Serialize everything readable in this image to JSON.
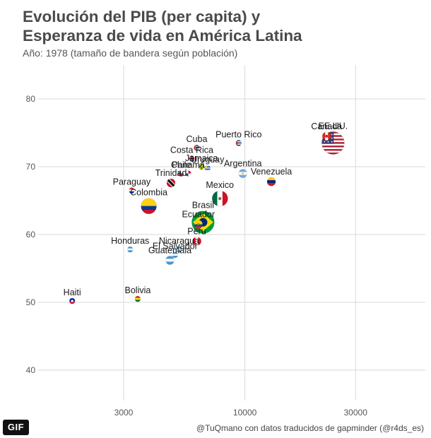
{
  "title_lines": [
    "Evolución del PIB (per capita) y",
    "Esperanza de vida en América Latina"
  ],
  "subtitle": "Año: 1978 (tamaño de bandera según población)",
  "caption": "@TuQmano con datos traducidos de gapminder (@r4ds_es)",
  "badge": "GIF",
  "chart_data": {
    "type": "scatter",
    "xscale": "log",
    "xlim": [
      1100,
      60000
    ],
    "ylim": [
      35.5,
      85
    ],
    "xticks": [
      3000,
      10000,
      30000
    ],
    "xtick_labels": [
      "3000",
      "10000",
      "30000"
    ],
    "yticks": [
      40,
      50,
      60,
      70,
      80
    ],
    "ytick_labels": [
      "40",
      "50",
      "60",
      "70",
      "80"
    ],
    "grid": true,
    "points": [
      {
        "label": "Canada",
        "x": 22500,
        "y": 74.5,
        "flag": "canada",
        "size": "small"
      },
      {
        "label": "EE.UU.",
        "x": 24000,
        "y": 73.5,
        "flag": "usa",
        "size": "large"
      },
      {
        "label": "Puerto Rico",
        "x": 9400,
        "y": 73.5,
        "flag": "puerto-rico",
        "size": "tiny"
      },
      {
        "label": "Cuba",
        "x": 6200,
        "y": 72.8,
        "flag": "cuba",
        "size": "tiny"
      },
      {
        "label": "Costa Rica",
        "x": 5900,
        "y": 71.2,
        "flag": "costa-rica",
        "size": "tiny"
      },
      {
        "label": "Jamaica",
        "x": 6500,
        "y": 70.0,
        "flag": "jamaica",
        "size": "tiny"
      },
      {
        "label": "Uruguay",
        "x": 6900,
        "y": 69.8,
        "flag": "uruguay",
        "size": "tiny"
      },
      {
        "label": "Panamá",
        "x": 5700,
        "y": 69.0,
        "flag": "panama",
        "size": "tiny"
      },
      {
        "label": "Chile",
        "x": 5300,
        "y": 69.0,
        "flag": "chile",
        "size": "tiny"
      },
      {
        "label": "Argentina",
        "x": 9800,
        "y": 69.0,
        "flag": "argentina",
        "size": "small"
      },
      {
        "label": "Venezuela",
        "x": 13000,
        "y": 67.8,
        "flag": "venezuela",
        "size": "small"
      },
      {
        "label": "Paraguay",
        "x": 3250,
        "y": 66.5,
        "flag": "paraguay",
        "size": "tiny"
      },
      {
        "label": "Trinidad",
        "x": 4800,
        "y": 67.6,
        "flag": "trinidad",
        "size": "small"
      },
      {
        "label": "Mexico",
        "x": 7800,
        "y": 65.3,
        "flag": "mexico",
        "size": "medium"
      },
      {
        "label": "Colombia",
        "x": 3850,
        "y": 64.2,
        "flag": "colombia",
        "size": "medium"
      },
      {
        "label": "Ecuador",
        "x": 6300,
        "y": 61.5,
        "flag": "ecuador",
        "size": "small"
      },
      {
        "label": "Brasil",
        "x": 6600,
        "y": 61.8,
        "flag": "brasil",
        "size": "large"
      },
      {
        "label": "Peru",
        "x": 6200,
        "y": 59.0,
        "flag": "peru",
        "size": "small"
      },
      {
        "label": "Honduras",
        "x": 3200,
        "y": 57.8,
        "flag": "honduras",
        "size": "tiny"
      },
      {
        "label": "Nicaragua",
        "x": 5200,
        "y": 57.8,
        "flag": "nicaragua",
        "size": "tiny"
      },
      {
        "label": "El Salvador",
        "x": 5000,
        "y": 57.0,
        "flag": "el-salvador",
        "size": "tiny"
      },
      {
        "label": "Guatemala",
        "x": 4750,
        "y": 56.2,
        "flag": "guatemala",
        "size": "small"
      },
      {
        "label": "Haiti",
        "x": 1800,
        "y": 50.2,
        "flag": "haiti",
        "size": "tiny"
      },
      {
        "label": "Bolivia",
        "x": 3450,
        "y": 50.5,
        "flag": "bolivia",
        "size": "tiny"
      }
    ]
  }
}
